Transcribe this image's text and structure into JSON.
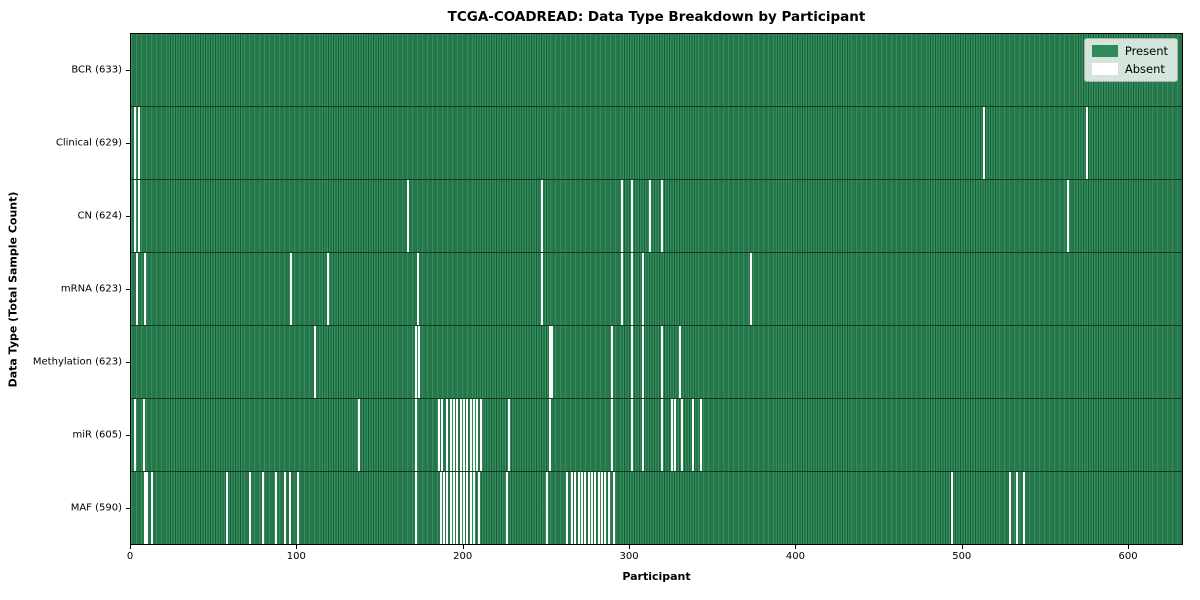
{
  "chart_data": {
    "type": "heatmap",
    "title": "TCGA-COADREAD: Data Type Breakdown by Participant",
    "xlabel": "Participant",
    "ylabel": "Data Type (Total Sample Count)",
    "x_ticks": [
      0,
      100,
      200,
      300,
      400,
      500,
      600
    ],
    "x_range": [
      0,
      633
    ],
    "n_participants": 633,
    "grid": false,
    "legend": {
      "position": "upper right",
      "entries": [
        {
          "label": "Present",
          "color": "#2e8b57"
        },
        {
          "label": "Absent",
          "color": "#ffffff"
        }
      ]
    },
    "cell_present_color": "#2e8b57",
    "cell_edge_color": "#1d5e3a",
    "absent_color": "#ffffff",
    "rows": [
      {
        "name": "BCR",
        "label": "BCR (633)",
        "total_samples": 633,
        "absent_count": 0,
        "absent_participants": []
      },
      {
        "name": "Clinical",
        "label": "Clinical (629)",
        "total_samples": 629,
        "absent_count": 4,
        "absent_participants": [
          2,
          4,
          513,
          575
        ]
      },
      {
        "name": "CN",
        "label": "CN (624)",
        "total_samples": 624,
        "absent_count": 9,
        "absent_participants": [
          2,
          4,
          166,
          247,
          295,
          301,
          312,
          319,
          564
        ]
      },
      {
        "name": "mRNA",
        "label": "mRNA (623)",
        "total_samples": 623,
        "absent_count": 10,
        "absent_participants": [
          3,
          8,
          96,
          118,
          172,
          247,
          295,
          301,
          308,
          373
        ]
      },
      {
        "name": "Methylation",
        "label": "Methylation (623)",
        "total_samples": 623,
        "absent_count": 10,
        "absent_participants": [
          110,
          171,
          173,
          252,
          253,
          289,
          301,
          308,
          319,
          330
        ]
      },
      {
        "name": "miR",
        "label": "miR (605)",
        "total_samples": 605,
        "absent_count": 28,
        "absent_participants": [
          2,
          7,
          137,
          171,
          185,
          187,
          190,
          192,
          194,
          196,
          198,
          200,
          202,
          204,
          206,
          208,
          210,
          227,
          252,
          289,
          301,
          308,
          319,
          325,
          327,
          331,
          338,
          343
        ]
      },
      {
        "name": "MAF",
        "label": "MAF (590)",
        "total_samples": 590,
        "absent_count": 43,
        "absent_participants": [
          8,
          9,
          12,
          57,
          71,
          79,
          87,
          92,
          95,
          100,
          171,
          186,
          188,
          190,
          192,
          194,
          196,
          198,
          200,
          202,
          204,
          206,
          209,
          226,
          250,
          262,
          265,
          267,
          269,
          271,
          273,
          275,
          277,
          279,
          281,
          283,
          285,
          287,
          290,
          494,
          529,
          533,
          537
        ]
      }
    ]
  }
}
